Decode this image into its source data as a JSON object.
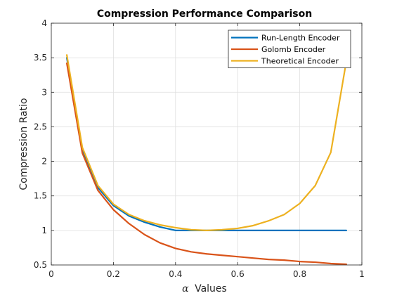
{
  "chart_data": {
    "type": "line",
    "title": "Compression Performance Comparison",
    "xlabel": "Values",
    "xlabel_symbol": "α",
    "ylabel": "Compression Ratio",
    "xlim": [
      0,
      1
    ],
    "ylim": [
      0.5,
      4
    ],
    "xticks": [
      0,
      0.2,
      0.4,
      0.6,
      0.8,
      1
    ],
    "xtick_labels": [
      "0",
      "0.2",
      "0.4",
      "0.6",
      "0.8",
      "1"
    ],
    "yticks": [
      0.5,
      1,
      1.5,
      2,
      2.5,
      3,
      3.5,
      4
    ],
    "ytick_labels": [
      "0.5",
      "1",
      "1.5",
      "2",
      "2.5",
      "3",
      "3.5",
      "4"
    ],
    "grid": true,
    "legend_position": "top-right",
    "x": [
      0.05,
      0.1,
      0.15,
      0.2,
      0.25,
      0.3,
      0.35,
      0.4,
      0.45,
      0.5,
      0.55,
      0.6,
      0.65,
      0.7,
      0.75,
      0.8,
      0.85,
      0.9,
      0.95
    ],
    "series": [
      {
        "name": "Run-Length Encoder",
        "color": "#0072bd",
        "values": [
          3.5,
          2.17,
          1.62,
          1.36,
          1.21,
          1.12,
          1.05,
          1.0,
          1.0,
          1.0,
          1.0,
          1.0,
          1.0,
          1.0,
          1.0,
          1.0,
          1.0,
          1.0,
          1.0
        ]
      },
      {
        "name": "Golomb Encoder",
        "color": "#d95319",
        "values": [
          3.42,
          2.12,
          1.58,
          1.3,
          1.1,
          0.94,
          0.82,
          0.74,
          0.69,
          0.66,
          0.64,
          0.62,
          0.6,
          0.58,
          0.57,
          0.55,
          0.54,
          0.52,
          0.51
        ]
      },
      {
        "name": "Theoretical Encoder",
        "color": "#edb120",
        "values": [
          3.54,
          2.2,
          1.65,
          1.38,
          1.23,
          1.14,
          1.08,
          1.04,
          1.01,
          1.0,
          1.01,
          1.03,
          1.07,
          1.14,
          1.23,
          1.39,
          1.65,
          2.13,
          3.45
        ]
      }
    ]
  }
}
